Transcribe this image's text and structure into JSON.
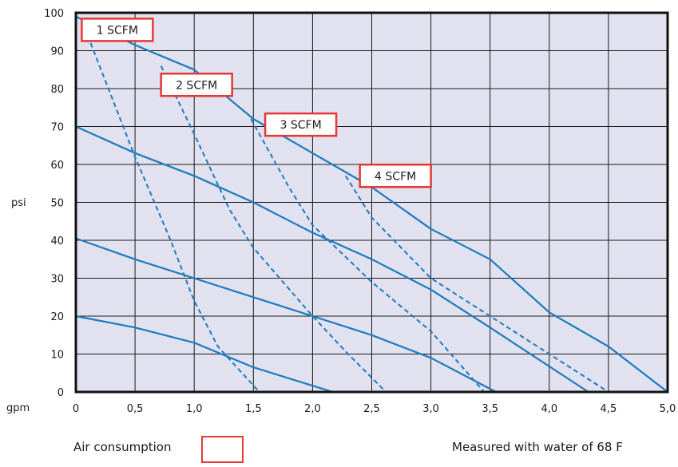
{
  "colors": {
    "plot_bg": "#e1e1ef",
    "curve": "#1a7bbf",
    "label_border": "#e53935",
    "grid": "#1a1a1a"
  },
  "ylabel": "psi",
  "xlabel": "gpm",
  "legend_label": "Air consumption",
  "footnote": "Measured with water of 68 F",
  "chart_data": {
    "type": "line",
    "xlabel": "gpm",
    "ylabel": "psi",
    "xlim": [
      0,
      5
    ],
    "ylim": [
      0,
      100
    ],
    "x_ticks": [
      "0",
      "0,5",
      "1,0",
      "1,5",
      "2,0",
      "2,5",
      "3,0",
      "3,5",
      "4,0",
      "4,5",
      "5,0"
    ],
    "y_ticks": [
      "0",
      "10",
      "20",
      "30",
      "40",
      "50",
      "60",
      "70",
      "80",
      "90",
      "100"
    ],
    "grid": true,
    "legend": "bottom-left",
    "pressure_curves": [
      {
        "style": "solid",
        "points": [
          [
            0,
            20
          ],
          [
            0.5,
            17
          ],
          [
            1.0,
            13
          ],
          [
            1.5,
            6.5
          ],
          [
            2.17,
            0
          ]
        ]
      },
      {
        "style": "solid",
        "points": [
          [
            0,
            40.5
          ],
          [
            0.5,
            35
          ],
          [
            1.0,
            30
          ],
          [
            1.5,
            25
          ],
          [
            2.0,
            20
          ],
          [
            2.5,
            15
          ],
          [
            3.0,
            9
          ],
          [
            3.55,
            0
          ]
        ]
      },
      {
        "style": "solid",
        "points": [
          [
            0,
            70
          ],
          [
            0.5,
            63
          ],
          [
            1.0,
            57
          ],
          [
            1.5,
            50
          ],
          [
            2.0,
            42
          ],
          [
            2.5,
            35
          ],
          [
            3.0,
            27
          ],
          [
            3.5,
            17
          ],
          [
            4.33,
            0
          ]
        ]
      },
      {
        "style": "solid",
        "points": [
          [
            0,
            99
          ],
          [
            0.5,
            91.5
          ],
          [
            1.0,
            85
          ],
          [
            1.5,
            72
          ],
          [
            2.0,
            63
          ],
          [
            2.5,
            54
          ],
          [
            3.0,
            43
          ],
          [
            3.5,
            35
          ],
          [
            4.0,
            21
          ],
          [
            4.5,
            12
          ],
          [
            5.0,
            0
          ]
        ]
      }
    ],
    "air_consumption_curves": [
      {
        "label": "1 SCFM",
        "style": "dashed",
        "points": [
          [
            0.1,
            94
          ],
          [
            0.5,
            62
          ],
          [
            0.8,
            40
          ],
          [
            1.0,
            24
          ],
          [
            1.2,
            12
          ],
          [
            1.55,
            0
          ]
        ]
      },
      {
        "label": "2 SCFM",
        "style": "dashed",
        "points": [
          [
            0.72,
            86
          ],
          [
            1.0,
            68
          ],
          [
            1.3,
            48
          ],
          [
            1.5,
            38
          ],
          [
            2.0,
            20
          ],
          [
            2.3,
            10
          ],
          [
            2.62,
            0
          ]
        ]
      },
      {
        "label": "3 SCFM",
        "style": "dashed",
        "points": [
          [
            1.48,
            72
          ],
          [
            1.8,
            54
          ],
          [
            2.0,
            44
          ],
          [
            2.5,
            29
          ],
          [
            3.0,
            16
          ],
          [
            3.45,
            0
          ]
        ]
      },
      {
        "label": "4 SCFM",
        "style": "dashed",
        "points": [
          [
            2.28,
            57
          ],
          [
            2.5,
            46
          ],
          [
            3.0,
            30
          ],
          [
            3.5,
            20
          ],
          [
            4.0,
            10
          ],
          [
            4.5,
            0
          ]
        ]
      }
    ],
    "label_positions": [
      [
        0.35,
        95.5
      ],
      [
        1.02,
        81
      ],
      [
        1.9,
        70.5
      ],
      [
        2.7,
        57
      ]
    ]
  }
}
